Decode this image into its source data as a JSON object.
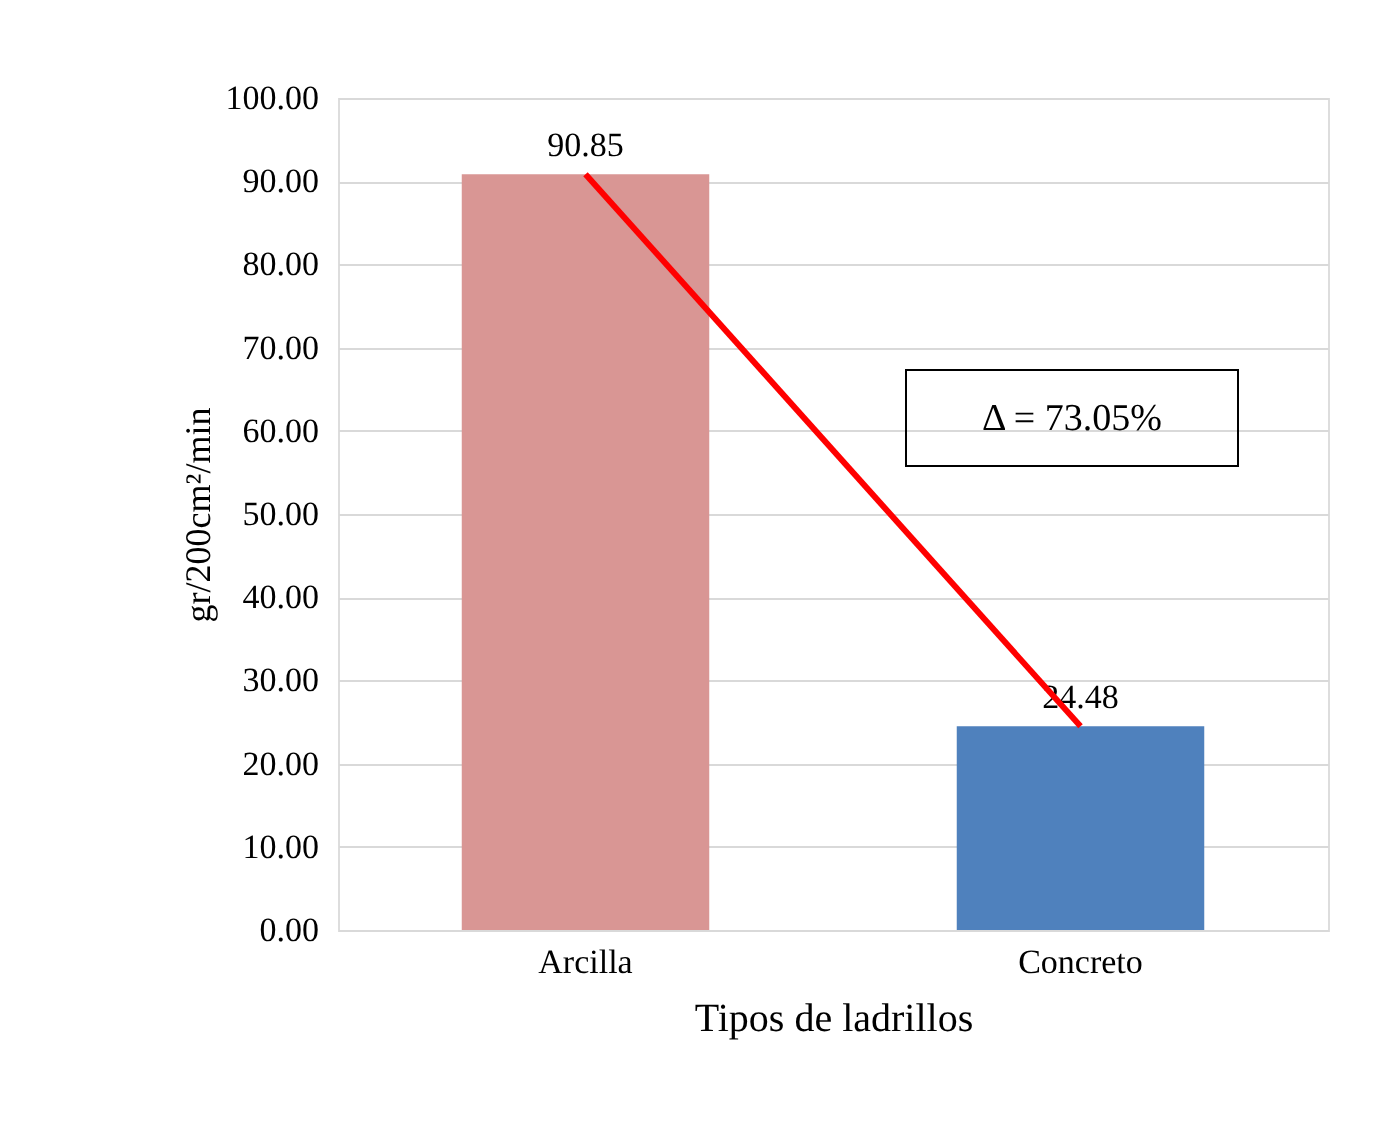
{
  "chart_data": {
    "type": "bar",
    "xlabel": "Tipos de ladrillos",
    "ylabel": "gr/200cm²/min",
    "categories": [
      "Arcilla",
      "Concreto"
    ],
    "series": [
      {
        "colors": [
          "#d99694",
          "#4f81bd"
        ],
        "values": [
          90.85,
          24.48
        ],
        "value_labels": [
          "90.85",
          "24.48"
        ]
      },
      {
        "type": "line",
        "color": "#ff0000",
        "values": [
          90.85,
          24.48
        ]
      }
    ],
    "ylim": [
      0,
      100
    ],
    "yticks": [
      {
        "value": 0,
        "label": "0.00"
      },
      {
        "value": 10,
        "label": "10.00"
      },
      {
        "value": 20,
        "label": "20.00"
      },
      {
        "value": 30,
        "label": "30.00"
      },
      {
        "value": 40,
        "label": "40.00"
      },
      {
        "value": 50,
        "label": "50.00"
      },
      {
        "value": 60,
        "label": "60.00"
      },
      {
        "value": 70,
        "label": "70.00"
      },
      {
        "value": 80,
        "label": "80.00"
      },
      {
        "value": 90,
        "label": "90.00"
      },
      {
        "value": 100,
        "label": "100.00"
      }
    ],
    "grid": "y",
    "marker": "none",
    "line_style": "solid",
    "annotations": [
      "Δ = 73.05%"
    ]
  }
}
